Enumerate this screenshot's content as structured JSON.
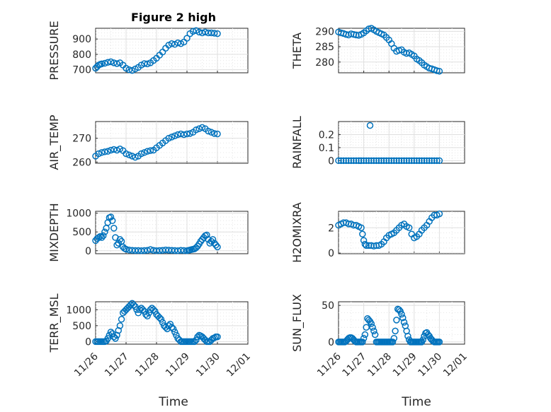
{
  "figure": {
    "title": "Figure 2 high",
    "xlabel": "Time"
  },
  "colors": {
    "series": "#0072bd",
    "axis": "#262626",
    "grid": "#dfdfdf"
  },
  "x_tick_labels": [
    "11/26",
    "11/27",
    "11/28",
    "11/29",
    "11/30",
    "12/01"
  ],
  "chart_data": [
    {
      "type": "scatter",
      "id": "pressure",
      "ylabel": "PRESSURE",
      "xlim": [
        0,
        5
      ],
      "ylim": [
        680,
        970
      ],
      "yticks": [
        700,
        800,
        900
      ],
      "ytick_labels": [
        "700",
        "800",
        "900"
      ],
      "grid": true,
      "minor_grid": true,
      "series": [
        {
          "x": [
            0.0,
            0.05,
            0.1,
            0.15,
            0.2,
            0.3,
            0.4,
            0.5,
            0.6,
            0.7,
            0.8,
            0.9,
            1.0,
            1.1,
            1.2,
            1.3,
            1.4,
            1.5,
            1.6,
            1.7,
            1.8,
            1.9,
            2.0,
            2.1,
            2.2,
            2.3,
            2.4,
            2.5,
            2.6,
            2.7,
            2.8,
            2.9,
            3.0,
            3.1,
            3.2,
            3.3,
            3.4,
            3.5,
            3.6,
            3.7,
            3.8,
            3.9,
            4.0
          ],
          "y": [
            710,
            720,
            730,
            735,
            738,
            742,
            748,
            752,
            745,
            740,
            745,
            730,
            710,
            700,
            695,
            705,
            715,
            730,
            740,
            738,
            745,
            760,
            775,
            795,
            815,
            840,
            860,
            870,
            865,
            875,
            870,
            880,
            905,
            935,
            950,
            955,
            945,
            940,
            945,
            940,
            940,
            938,
            935
          ]
        }
      ]
    },
    {
      "type": "scatter",
      "id": "theta",
      "ylabel": "THETA",
      "xlim": [
        0,
        5
      ],
      "ylim": [
        276.5,
        291
      ],
      "yticks": [
        280,
        285,
        290
      ],
      "ytick_labels": [
        "280",
        "285",
        "290"
      ],
      "grid": true,
      "minor_grid": true,
      "series": [
        {
          "x": [
            0.0,
            0.1,
            0.2,
            0.3,
            0.4,
            0.5,
            0.6,
            0.7,
            0.8,
            0.9,
            1.0,
            1.1,
            1.2,
            1.3,
            1.4,
            1.5,
            1.6,
            1.7,
            1.8,
            1.9,
            2.0,
            2.1,
            2.2,
            2.3,
            2.4,
            2.5,
            2.6,
            2.7,
            2.8,
            2.9,
            3.0,
            3.1,
            3.2,
            3.3,
            3.4,
            3.5,
            3.6,
            3.7,
            3.8,
            3.9,
            4.0
          ],
          "y": [
            289.8,
            289.5,
            289.3,
            289.0,
            288.8,
            289.2,
            289.0,
            288.8,
            288.7,
            289.0,
            289.5,
            290.2,
            290.8,
            291.0,
            290.5,
            290.0,
            289.6,
            289.2,
            288.8,
            288.0,
            287.2,
            286.0,
            284.5,
            283.5,
            283.8,
            284.0,
            283.2,
            282.8,
            283.0,
            282.5,
            282.0,
            281.0,
            280.5,
            279.8,
            279.0,
            278.5,
            278.0,
            277.8,
            277.5,
            277.2,
            277.0
          ]
        }
      ]
    },
    {
      "type": "scatter",
      "id": "air-temp",
      "ylabel": "AIR_TEMP",
      "xlim": [
        0,
        5
      ],
      "ylim": [
        259.5,
        277
      ],
      "yticks": [
        260,
        270
      ],
      "ytick_labels": [
        "260",
        "270"
      ],
      "grid": true,
      "minor_grid": true,
      "series": [
        {
          "x": [
            0.0,
            0.1,
            0.2,
            0.3,
            0.4,
            0.5,
            0.6,
            0.7,
            0.8,
            0.9,
            1.0,
            1.1,
            1.2,
            1.3,
            1.4,
            1.5,
            1.6,
            1.7,
            1.8,
            1.9,
            2.0,
            2.1,
            2.2,
            2.3,
            2.4,
            2.5,
            2.6,
            2.7,
            2.8,
            2.9,
            3.0,
            3.1,
            3.2,
            3.3,
            3.4,
            3.5,
            3.6,
            3.7,
            3.8,
            3.9,
            4.0
          ],
          "y": [
            262.5,
            263.5,
            264.0,
            264.3,
            264.5,
            265.0,
            265.3,
            265.0,
            265.5,
            264.8,
            263.5,
            263.0,
            262.5,
            262.0,
            262.5,
            263.5,
            264.0,
            264.5,
            264.8,
            265.0,
            266.0,
            267.0,
            268.0,
            269.0,
            270.0,
            270.5,
            271.0,
            271.5,
            271.8,
            271.5,
            271.8,
            272.0,
            272.5,
            273.5,
            274.0,
            274.5,
            274.0,
            273.0,
            272.5,
            272.0,
            271.8
          ]
        }
      ]
    },
    {
      "type": "scatter",
      "id": "rainfall",
      "ylabel": "RAINFALL",
      "xlim": [
        0,
        5
      ],
      "ylim": [
        -0.02,
        0.3
      ],
      "yticks": [
        0,
        0.1,
        0.2
      ],
      "ytick_labels": [
        "0",
        "0.1",
        "0.2"
      ],
      "grid": true,
      "minor_grid": true,
      "series": [
        {
          "x": [
            0.0,
            0.1,
            0.2,
            0.3,
            0.4,
            0.5,
            0.6,
            0.7,
            0.8,
            0.9,
            1.0,
            1.1,
            1.2,
            1.3,
            1.4,
            1.5,
            1.6,
            1.7,
            1.8,
            1.9,
            2.0,
            2.1,
            2.2,
            2.3,
            2.4,
            2.5,
            2.6,
            2.7,
            2.8,
            2.9,
            3.0,
            3.1,
            3.2,
            3.3,
            3.4,
            3.5,
            3.6,
            3.7,
            3.8,
            3.9,
            4.0,
            1.25
          ],
          "y": [
            0,
            0,
            0,
            0,
            0,
            0,
            0,
            0,
            0,
            0,
            0,
            0,
            0,
            0,
            0,
            0,
            0,
            0,
            0,
            0,
            0,
            0,
            0,
            0,
            0,
            0,
            0,
            0,
            0,
            0,
            0,
            0,
            0,
            0,
            0,
            0,
            0,
            0,
            0,
            0,
            0,
            0.27
          ]
        }
      ]
    },
    {
      "type": "scatter",
      "id": "mixdepth",
      "ylabel": "MIXDEPTH",
      "xlim": [
        0,
        5
      ],
      "ylim": [
        -80,
        1050
      ],
      "yticks": [
        0,
        500,
        1000
      ],
      "ytick_labels": [
        "0",
        "500",
        "1000"
      ],
      "grid": true,
      "minor_grid": true,
      "series": [
        {
          "x": [
            0.0,
            0.05,
            0.1,
            0.15,
            0.2,
            0.25,
            0.3,
            0.35,
            0.4,
            0.45,
            0.5,
            0.55,
            0.6,
            0.65,
            0.7,
            0.75,
            0.8,
            0.85,
            0.9,
            0.95,
            1.0,
            1.1,
            1.2,
            1.3,
            1.4,
            1.5,
            1.6,
            1.7,
            1.8,
            1.9,
            2.0,
            2.1,
            2.2,
            2.3,
            2.4,
            2.5,
            2.6,
            2.7,
            2.8,
            2.9,
            3.0,
            3.05,
            3.1,
            3.15,
            3.2,
            3.25,
            3.3,
            3.35,
            3.4,
            3.45,
            3.5,
            3.55,
            3.6,
            3.65,
            3.7,
            3.75,
            3.8,
            3.85,
            3.9,
            3.95,
            4.0
          ],
          "y": [
            270,
            320,
            350,
            380,
            350,
            400,
            500,
            600,
            750,
            880,
            900,
            800,
            600,
            350,
            150,
            200,
            300,
            250,
            100,
            60,
            40,
            20,
            10,
            5,
            5,
            0,
            5,
            10,
            30,
            10,
            0,
            5,
            10,
            20,
            15,
            10,
            5,
            0,
            10,
            5,
            0,
            10,
            20,
            30,
            40,
            50,
            80,
            120,
            180,
            250,
            300,
            350,
            400,
            420,
            300,
            200,
            250,
            300,
            200,
            150,
            100
          ]
        }
      ]
    },
    {
      "type": "scatter",
      "id": "h2omixra",
      "ylabel": "H2OMIXRA",
      "xlim": [
        0,
        5
      ],
      "ylim": [
        -0.05,
        3.3
      ],
      "yticks": [
        0,
        2
      ],
      "ytick_labels": [
        "0",
        "2"
      ],
      "grid": true,
      "minor_grid": true,
      "series": [
        {
          "x": [
            0.0,
            0.1,
            0.2,
            0.3,
            0.4,
            0.5,
            0.6,
            0.7,
            0.8,
            0.9,
            0.95,
            1.0,
            1.05,
            1.1,
            1.2,
            1.3,
            1.4,
            1.5,
            1.6,
            1.7,
            1.8,
            1.9,
            2.0,
            2.1,
            2.2,
            2.3,
            2.4,
            2.5,
            2.6,
            2.7,
            2.8,
            2.9,
            3.0,
            3.1,
            3.2,
            3.3,
            3.4,
            3.5,
            3.6,
            3.7,
            3.8,
            3.9,
            4.0
          ],
          "y": [
            2.2,
            2.3,
            2.4,
            2.4,
            2.3,
            2.3,
            2.2,
            2.2,
            2.1,
            2.0,
            1.5,
            1.0,
            0.7,
            0.6,
            0.6,
            0.6,
            0.55,
            0.6,
            0.6,
            0.7,
            0.9,
            1.2,
            1.4,
            1.5,
            1.6,
            1.8,
            2.0,
            2.2,
            2.3,
            2.1,
            2.0,
            1.5,
            1.2,
            1.3,
            1.5,
            1.8,
            2.0,
            2.2,
            2.5,
            2.8,
            3.0,
            3.0,
            3.1
          ]
        }
      ]
    },
    {
      "type": "scatter",
      "id": "terr-msl",
      "ylabel": "TERR_MSL",
      "xlim": [
        0,
        5
      ],
      "ylim": [
        -80,
        1250
      ],
      "yticks": [
        0,
        500,
        1000
      ],
      "ytick_labels": [
        "0",
        "500",
        "1000"
      ],
      "grid": true,
      "minor_grid": true,
      "series": [
        {
          "x": [
            0.0,
            0.05,
            0.1,
            0.15,
            0.2,
            0.25,
            0.3,
            0.35,
            0.4,
            0.45,
            0.5,
            0.55,
            0.6,
            0.65,
            0.7,
            0.75,
            0.8,
            0.85,
            0.9,
            0.95,
            1.0,
            1.05,
            1.1,
            1.15,
            1.2,
            1.25,
            1.3,
            1.35,
            1.4,
            1.45,
            1.5,
            1.55,
            1.6,
            1.65,
            1.7,
            1.75,
            1.8,
            1.85,
            1.9,
            1.95,
            2.0,
            2.05,
            2.1,
            2.15,
            2.2,
            2.25,
            2.3,
            2.35,
            2.4,
            2.45,
            2.5,
            2.55,
            2.6,
            2.65,
            2.7,
            2.75,
            2.8,
            2.85,
            2.9,
            2.95,
            3.0,
            3.05,
            3.1,
            3.15,
            3.2,
            3.25,
            3.3,
            3.35,
            3.4,
            3.45,
            3.5,
            3.55,
            3.6,
            3.65,
            3.7,
            3.75,
            3.8,
            3.85,
            3.9,
            3.95,
            4.0
          ],
          "y": [
            0,
            0,
            0,
            0,
            0,
            0,
            0,
            20,
            100,
            200,
            300,
            250,
            150,
            100,
            200,
            350,
            500,
            700,
            900,
            950,
            1000,
            1050,
            1100,
            1150,
            1200,
            1150,
            1100,
            1000,
            900,
            1000,
            1050,
            1000,
            950,
            850,
            800,
            900,
            1000,
            1050,
            1000,
            950,
            850,
            800,
            750,
            700,
            600,
            500,
            450,
            400,
            500,
            550,
            450,
            400,
            300,
            200,
            100,
            50,
            0,
            0,
            0,
            0,
            0,
            0,
            0,
            0,
            0,
            0,
            50,
            150,
            200,
            180,
            150,
            100,
            50,
            0,
            0,
            0,
            50,
            100,
            120,
            150,
            150
          ]
        }
      ]
    },
    {
      "type": "scatter",
      "id": "sun-flux",
      "ylabel": "SUN_FLUX",
      "xlim": [
        0,
        5
      ],
      "ylim": [
        -3,
        55
      ],
      "yticks": [
        0,
        50
      ],
      "ytick_labels": [
        "0",
        "50"
      ],
      "grid": true,
      "minor_grid": true,
      "series": [
        {
          "x": [
            0.0,
            0.05,
            0.1,
            0.15,
            0.2,
            0.25,
            0.3,
            0.35,
            0.4,
            0.45,
            0.5,
            0.55,
            0.6,
            0.65,
            0.7,
            0.75,
            0.8,
            0.85,
            0.9,
            0.95,
            1.0,
            1.05,
            1.1,
            1.15,
            1.2,
            1.25,
            1.3,
            1.35,
            1.4,
            1.45,
            1.5,
            1.55,
            1.6,
            1.65,
            1.7,
            1.75,
            1.8,
            1.85,
            1.9,
            1.95,
            2.0,
            2.05,
            2.1,
            2.15,
            2.2,
            2.25,
            2.3,
            2.35,
            2.4,
            2.45,
            2.5,
            2.55,
            2.6,
            2.65,
            2.7,
            2.75,
            2.8,
            2.85,
            2.9,
            2.95,
            3.0,
            3.05,
            3.1,
            3.15,
            3.2,
            3.25,
            3.3,
            3.35,
            3.4,
            3.45,
            3.5,
            3.55,
            3.6,
            3.65,
            3.7,
            3.75,
            3.8,
            3.85,
            3.9,
            3.95,
            4.0
          ],
          "y": [
            0,
            0,
            0,
            0,
            0,
            0,
            1,
            3,
            5,
            6,
            6,
            5,
            3,
            1,
            0,
            0,
            0,
            0,
            0,
            0,
            5,
            10,
            20,
            32,
            30,
            28,
            25,
            20,
            15,
            10,
            0,
            0,
            0,
            0,
            0,
            0,
            0,
            0,
            0,
            0,
            0,
            0,
            0,
            0,
            5,
            15,
            30,
            45,
            44,
            42,
            38,
            33,
            27,
            22,
            15,
            8,
            3,
            0,
            0,
            0,
            0,
            0,
            0,
            0,
            0,
            0,
            0,
            3,
            8,
            12,
            13,
            10,
            8,
            5,
            3,
            1,
            0,
            0,
            0,
            0,
            0
          ]
        }
      ]
    }
  ]
}
